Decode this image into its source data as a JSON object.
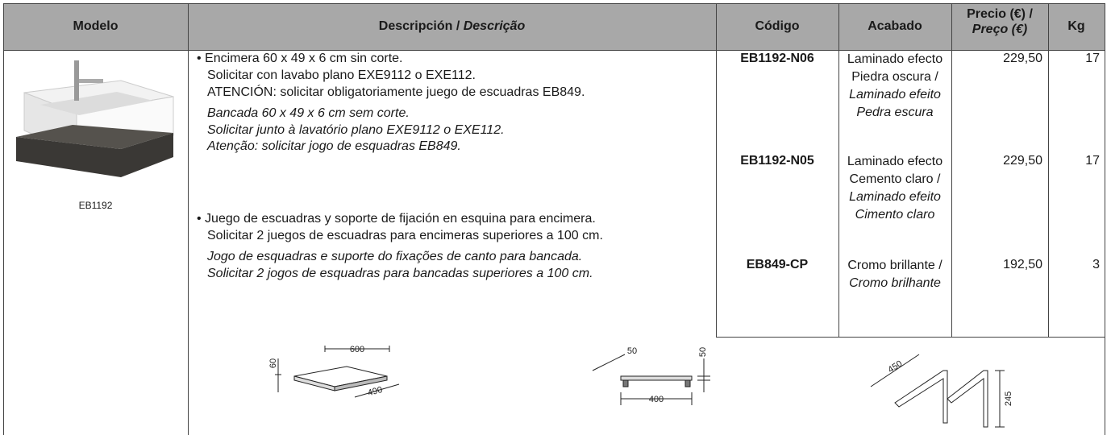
{
  "header": {
    "columns": [
      {
        "label": "Modelo"
      },
      {
        "label": "Descripción /",
        "label_pt": "Descrição"
      },
      {
        "label": "Código"
      },
      {
        "label": "Acabado"
      },
      {
        "label": "Precio (€) /",
        "label_pt": "Preço (€)"
      },
      {
        "label": "Kg"
      }
    ]
  },
  "model": {
    "caption": "EB1192"
  },
  "descriptions": [
    {
      "es": [
        "• Encimera 60 x 49 x 6 cm sin corte.",
        "Solicitar con lavabo plano EXE9112 o EXE112.",
        "ATENCIÓN: solicitar obligatoriamente juego de escuadras EB849."
      ],
      "pt": [
        "Bancada 60 x 49 x 6 cm sem corte.",
        "Solicitar junto à lavatório plano EXE9112 o EXE112.",
        "Atenção: solicitar jogo de esquadras EB849."
      ]
    },
    {
      "es": [
        "• Juego de escuadras y soporte de fijación en esquina para encimera.",
        "Solicitar 2 juegos de escuadras para encimeras superiores a 100 cm."
      ],
      "pt": [
        "Jogo de esquadras e suporte do fixações de canto para bancada.",
        "Solicitar 2 jogos de esquadras para bancadas superiores a 100 cm."
      ]
    }
  ],
  "products": [
    {
      "code": "EB1192-N06",
      "finish_es": [
        "Laminado efecto",
        "Piedra oscura /"
      ],
      "finish_pt": [
        "Laminado efeito",
        "Pedra escura"
      ],
      "price": "229,50",
      "kg": "17"
    },
    {
      "code": "EB1192-N05",
      "finish_es": [
        "Laminado efecto",
        "Cemento claro /"
      ],
      "finish_pt": [
        "Laminado efeito",
        "Cimento claro"
      ],
      "price": "229,50",
      "kg": "17"
    },
    {
      "code": "EB849-CP",
      "finish_es": [
        "Cromo brillante /"
      ],
      "finish_pt": [
        "Cromo brilhante"
      ],
      "price": "192,50",
      "kg": "3"
    }
  ],
  "drawings": {
    "countertop": [
      "60",
      "600",
      "490"
    ],
    "side": [
      "50",
      "50",
      "400"
    ],
    "brackets": [
      "450",
      "245"
    ]
  }
}
